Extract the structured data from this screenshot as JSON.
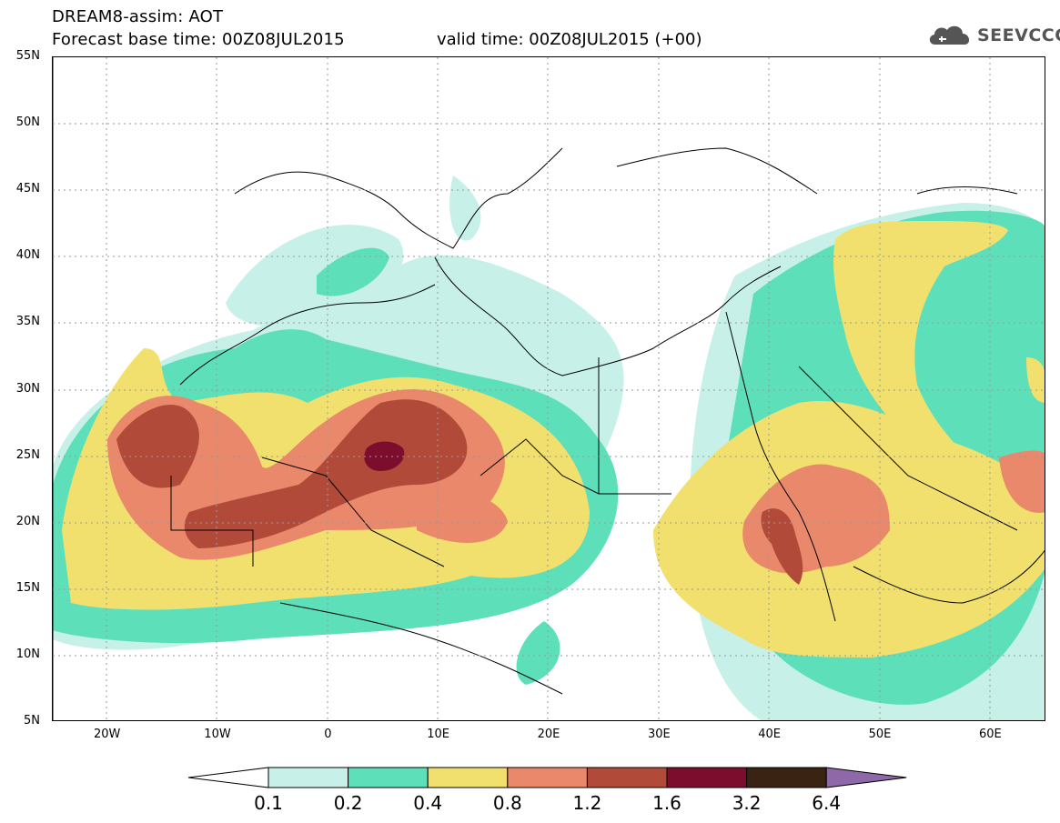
{
  "header": {
    "line1": "DREAM8-assim: AOT",
    "line2": "Forecast base time: 00Z08JUL2015",
    "line3": "valid time: 00Z08JUL2015 (+00)"
  },
  "logo": {
    "text": "SEEVCCC",
    "icon": "cloud-icon"
  },
  "map": {
    "lat_labels": [
      "55N",
      "50N",
      "45N",
      "40N",
      "35N",
      "30N",
      "25N",
      "20N",
      "15N",
      "10N",
      "5N"
    ],
    "lon_labels": [
      "20W",
      "10W",
      "0",
      "10E",
      "20E",
      "30E",
      "40E",
      "50E",
      "60E"
    ],
    "lat_range": [
      5,
      55
    ],
    "lon_range": [
      -25,
      65
    ]
  },
  "colorbar": {
    "colors": [
      "#c6f0e8",
      "#5de0b9",
      "#f2e06e",
      "#e9886a",
      "#b24a3a",
      "#7c0d2d",
      "#3a2312",
      "#8e68a8"
    ],
    "labels": [
      "0.1",
      "0.2",
      "0.4",
      "0.8",
      "1.2",
      "1.6",
      "3.2",
      "6.4"
    ]
  }
}
